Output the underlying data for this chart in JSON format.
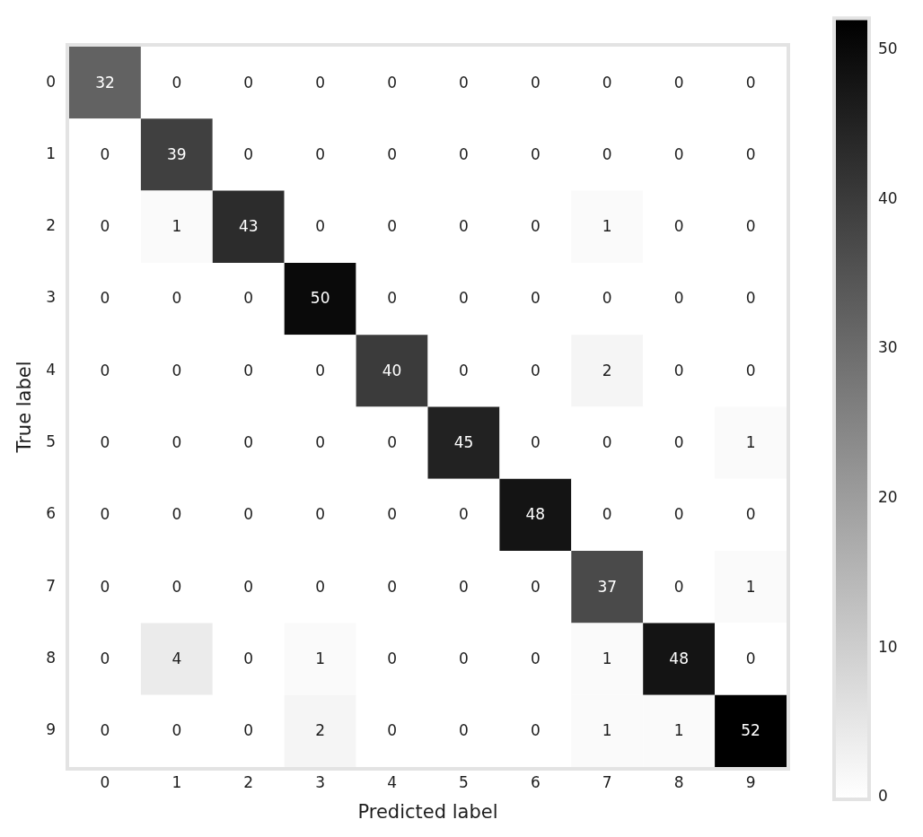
{
  "chart_data": {
    "type": "heatmap",
    "xlabel": "Predicted label",
    "ylabel": "True label",
    "categories": [
      "0",
      "1",
      "2",
      "3",
      "4",
      "5",
      "6",
      "7",
      "8",
      "9"
    ],
    "y_categories": [
      "0",
      "1",
      "2",
      "3",
      "4",
      "5",
      "6",
      "7",
      "8",
      "9"
    ],
    "cells": [
      [
        32,
        0,
        0,
        0,
        0,
        0,
        0,
        0,
        0,
        0
      ],
      [
        0,
        39,
        0,
        0,
        0,
        0,
        0,
        0,
        0,
        0
      ],
      [
        0,
        1,
        43,
        0,
        0,
        0,
        0,
        1,
        0,
        0
      ],
      [
        0,
        0,
        0,
        50,
        0,
        0,
        0,
        0,
        0,
        0
      ],
      [
        0,
        0,
        0,
        0,
        40,
        0,
        0,
        2,
        0,
        0
      ],
      [
        0,
        0,
        0,
        0,
        0,
        45,
        0,
        0,
        0,
        1
      ],
      [
        0,
        0,
        0,
        0,
        0,
        0,
        48,
        0,
        0,
        0
      ],
      [
        0,
        0,
        0,
        0,
        0,
        0,
        0,
        37,
        0,
        1
      ],
      [
        0,
        4,
        0,
        1,
        0,
        0,
        0,
        1,
        48,
        0
      ],
      [
        0,
        0,
        0,
        2,
        0,
        0,
        0,
        1,
        1,
        52
      ]
    ],
    "clim": [
      0,
      52
    ],
    "cticks": [
      0,
      10,
      20,
      30,
      40,
      50
    ],
    "data_labels": true
  }
}
